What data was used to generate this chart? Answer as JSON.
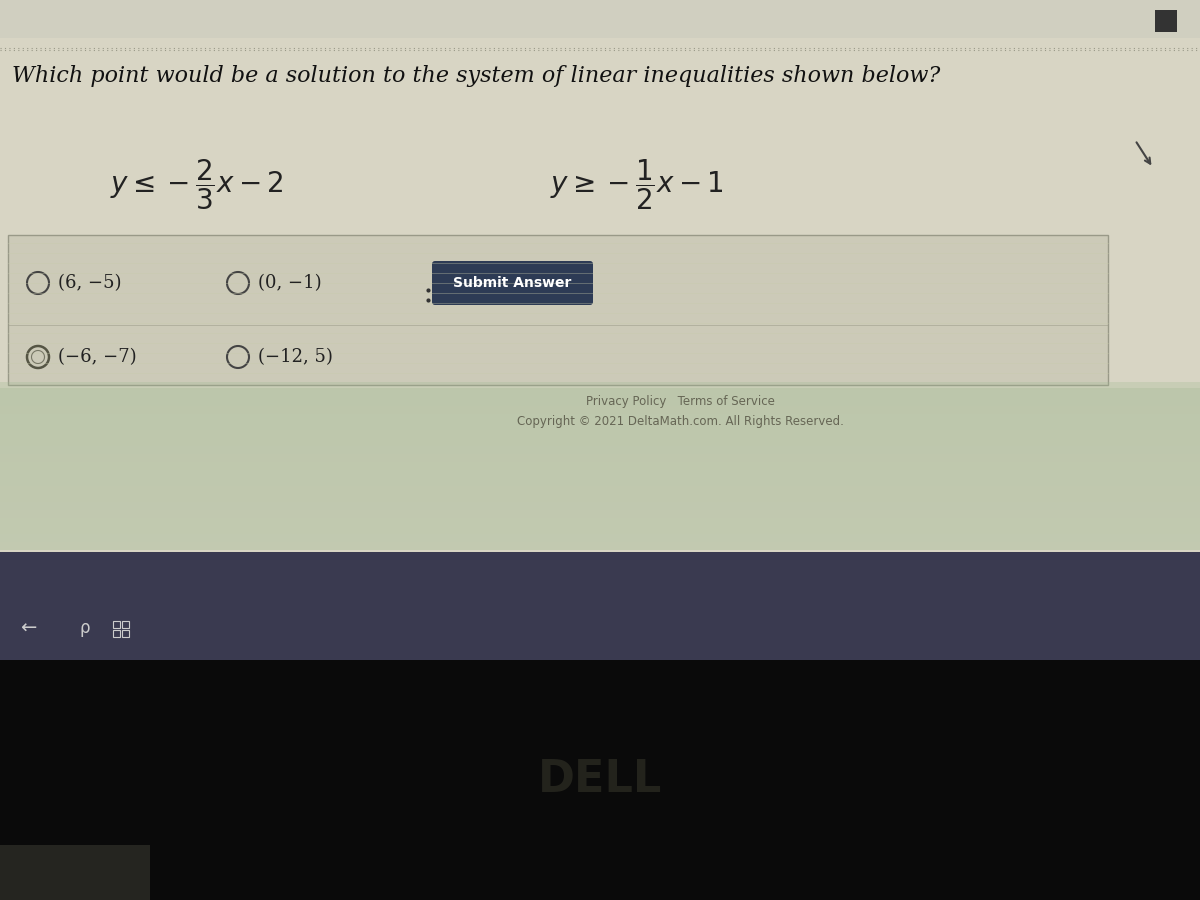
{
  "title": "Which point would be a solution to the system of linear inequalities shown below?",
  "options": [
    "(6, −5)",
    "(0, −1)",
    "(−6, −7)",
    "(−12, 5)"
  ],
  "submit_label": "Submit Answer",
  "footer1": "Privacy Policy   Terms of Service",
  "footer2": "Copyright © 2021 DeltaMath.com. All Rights Reserved.",
  "page_bg": "#d8d5c4",
  "top_strip_color": "#c8c5b4",
  "top_bar_color": "#3c3c4c",
  "answer_box_bg": "#cccab8",
  "answer_box_border": "#999988",
  "submit_btn_color": "#2d3b55",
  "submit_btn_text": "#ffffff",
  "title_color": "#111111",
  "text_color": "#222222",
  "footer_color": "#666655",
  "dashed_line_color": "#999988",
  "option_circle_color": "#444444",
  "selected_circle_color": "#555544",
  "dell_bg": "#0a0a0a",
  "dell_text_color": "#2a2a22",
  "taskbar_color": "#3a3a50",
  "taskbar_icon_color": "#cccccc",
  "browser_bar_color": "#d0cfc0",
  "greenish_stripe_color": "#c8ccaa"
}
